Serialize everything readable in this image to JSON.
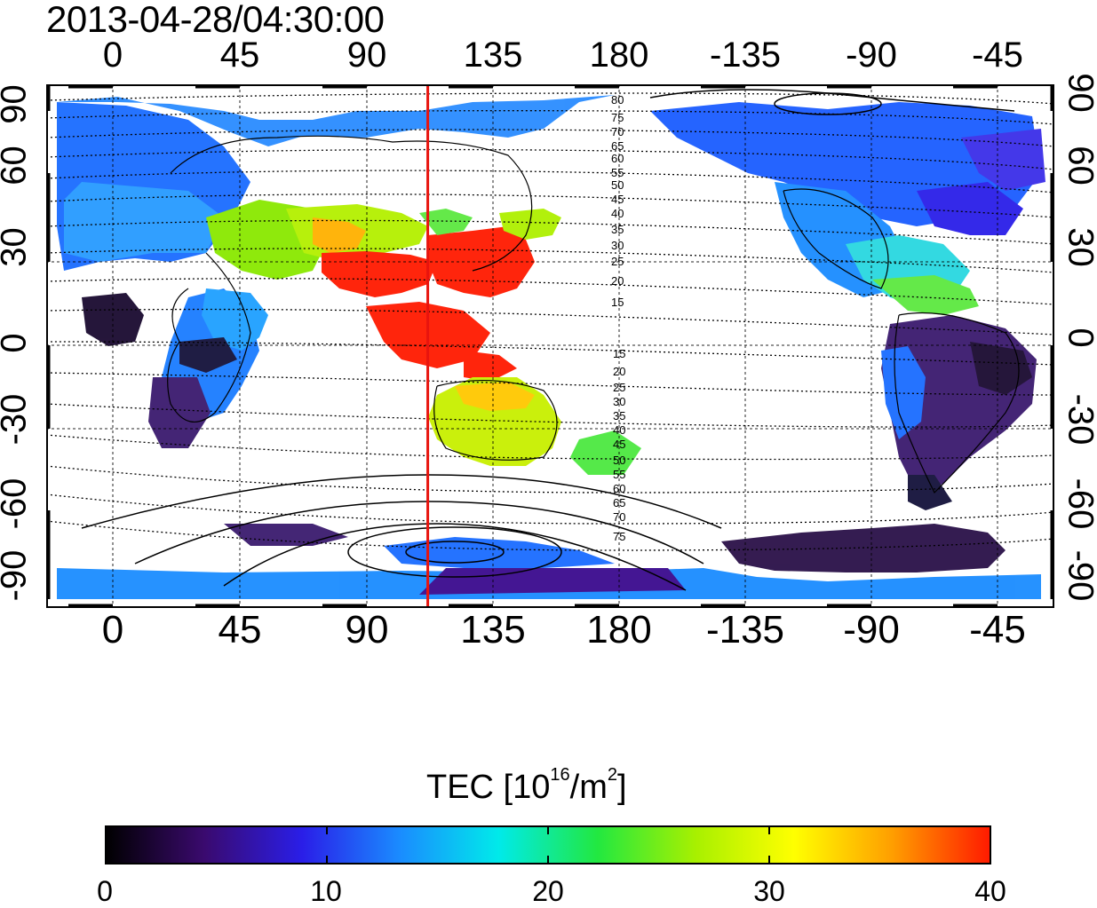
{
  "title": "2013-04-28/04:30:00",
  "map": {
    "lon_range": [
      -23,
      335
    ],
    "lat_range": [
      -95,
      95
    ],
    "top_axis_labels": [
      "0",
      "45",
      "90",
      "135",
      "180",
      "-135",
      "-90",
      "-45"
    ],
    "bottom_axis_labels": [
      "0",
      "45",
      "90",
      "135",
      "180",
      "-135",
      "-90",
      "-45"
    ],
    "left_axis_labels": [
      "90",
      "60",
      "30",
      "0",
      "-30",
      "-60",
      "-90"
    ],
    "right_axis_labels": [
      "90",
      "60",
      "30",
      "0",
      "-30",
      "-60",
      "-90"
    ],
    "meridian_marker_lon": 112.5,
    "meridian_marker_color": "#e8140e",
    "contour_labels_north": [
      "80",
      "75",
      "70",
      "65",
      "60",
      "55",
      "50",
      "45",
      "40",
      "35",
      "30",
      "25",
      "20",
      "15"
    ],
    "contour_labels_south": [
      "15",
      "20",
      "25",
      "30",
      "35",
      "40",
      "45",
      "50",
      "55",
      "60",
      "65",
      "70",
      "75"
    ]
  },
  "colorbar": {
    "title_prefix": "TEC  [10",
    "title_exp1": "16",
    "title_mid": "/m",
    "title_exp2": "2",
    "title_suffix": "]",
    "min": 0,
    "max": 40,
    "tick_labels": [
      "0",
      "10",
      "20",
      "30",
      "40"
    ],
    "colors": [
      "#000000",
      "#3a0a6e",
      "#2a1ee8",
      "#1a8cff",
      "#00eaea",
      "#22e840",
      "#a8f000",
      "#ffff00",
      "#ff9e00",
      "#ff1a00"
    ]
  }
}
